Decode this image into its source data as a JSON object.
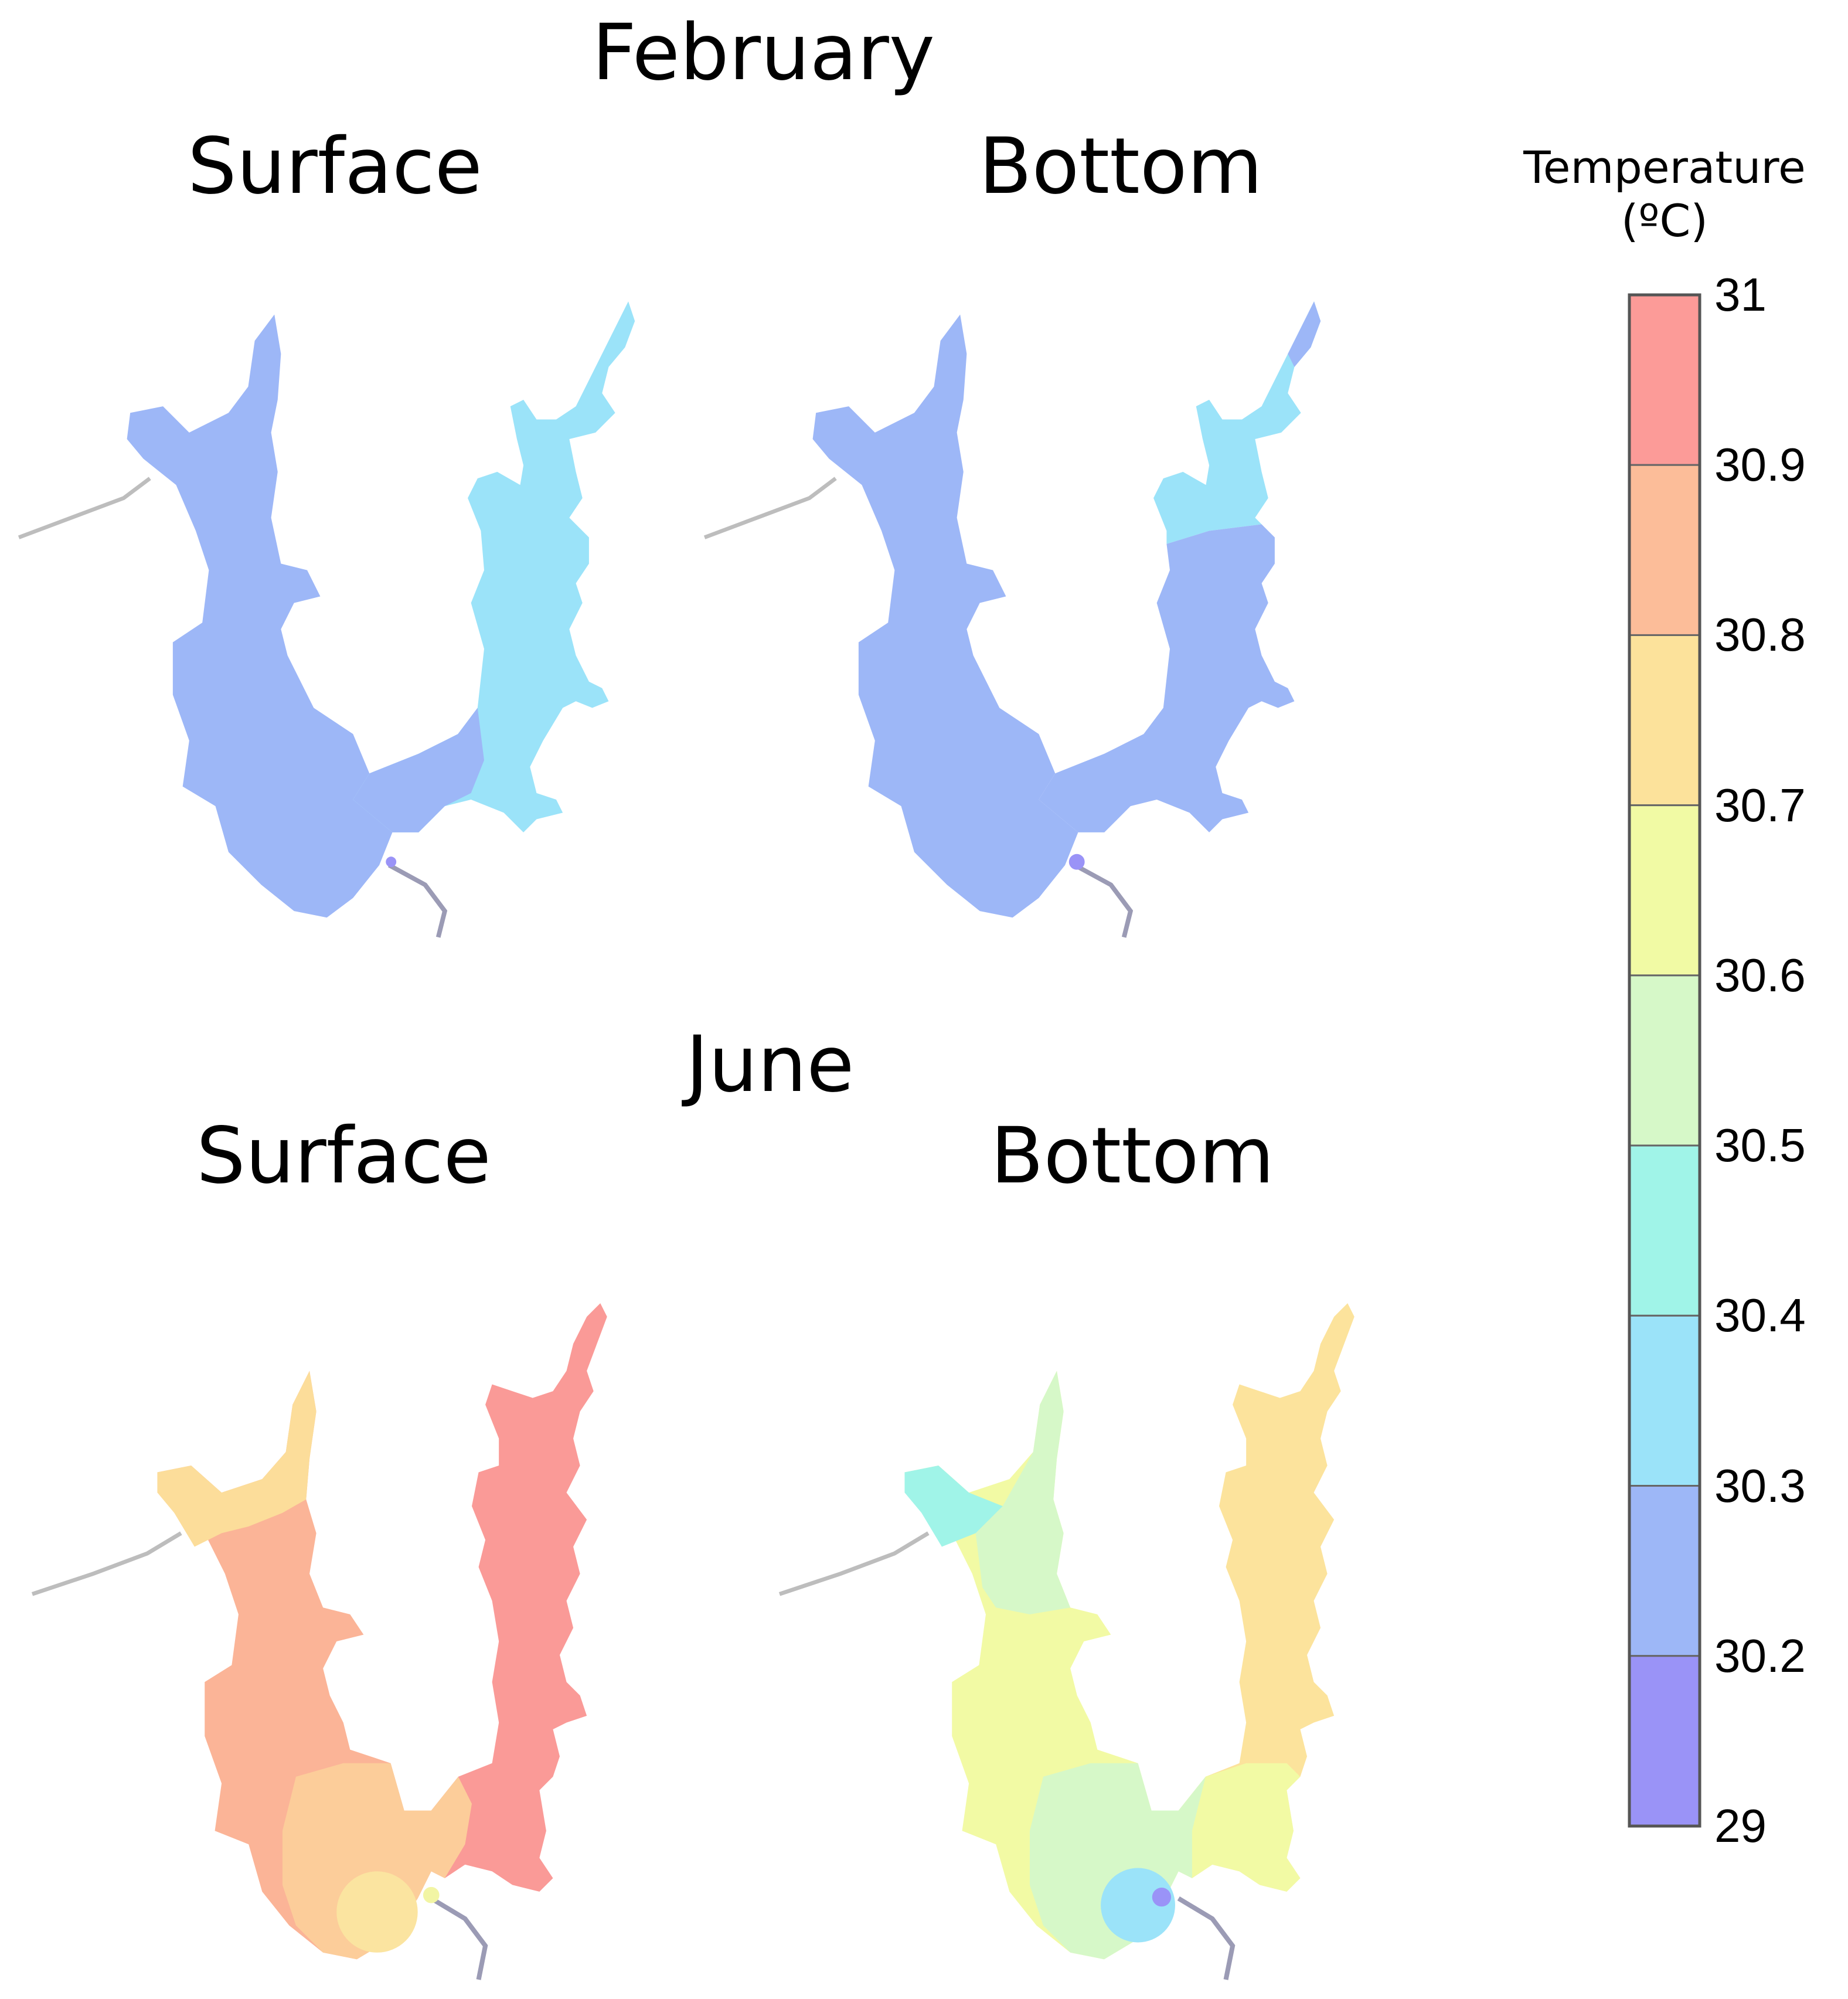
{
  "months": {
    "february": "February",
    "june": "June"
  },
  "panels": [
    {
      "id": "feb-surface",
      "month": "February",
      "layer": "Surface",
      "zones": {
        "main": "#9DB7F7",
        "east_upper": "#9BE3F9",
        "east_lower": "#9BE3F9",
        "east_tip": "#9BE3F9",
        "south": "#9DB7F7"
      },
      "outlet_dot": "#9A93F7"
    },
    {
      "id": "feb-bottom",
      "month": "February",
      "layer": "Bottom",
      "zones": {
        "main": "#9DB7F7",
        "east_upper": "#9BE3F9",
        "east_lower": "#9DB7F7",
        "east_tip": "#9DB7F7",
        "south": "#9DB7F7"
      },
      "outlet_dot": "#9A93F7"
    },
    {
      "id": "jun-surface",
      "month": "June",
      "layer": "Surface",
      "zones": {
        "nw": "#FCDD9A",
        "main": "#FBB497",
        "east": "#FA9A97",
        "south": "#FCCD9A",
        "hot": "#FBE4A0"
      },
      "outlet_dot": "#F2F5A4"
    },
    {
      "id": "jun-bottom",
      "month": "June",
      "layer": "Bottom",
      "zones": {
        "nw": "#A0F4E8",
        "upper": "#D6F8C8",
        "main": "#F2FAA4",
        "east": "#FCE39C",
        "south": "#D6F8C8",
        "cool": "#9BE3F9"
      },
      "outlet_dot": "#9A93F7"
    }
  ],
  "legend": {
    "title_line1": "Temperature",
    "title_line2": "(ºC)",
    "ticks": [
      "31",
      "30.9",
      "30.8",
      "30.7",
      "30.6",
      "30.5",
      "30.4",
      "30.3",
      "30.2",
      "29"
    ],
    "colors": [
      "#FC9B98",
      "#FCBD99",
      "#FCE29B",
      "#F1FAA4",
      "#D6F8C8",
      "#A0F4E8",
      "#9BE3F9",
      "#9DB7F7",
      "#9A93F7"
    ]
  }
}
